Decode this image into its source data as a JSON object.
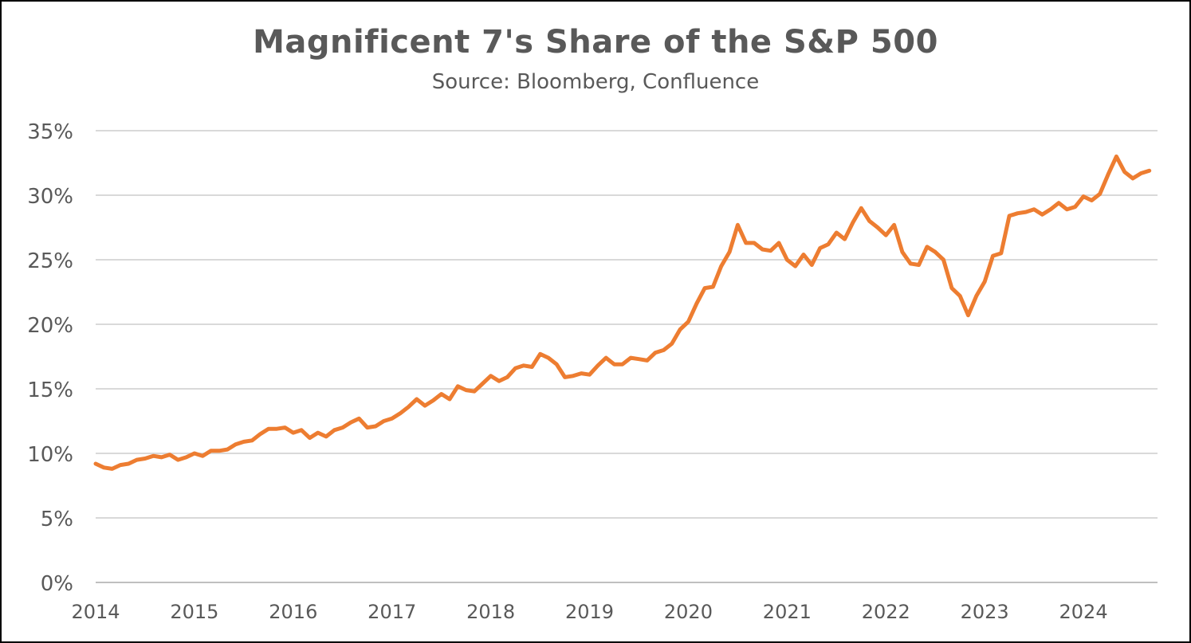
{
  "chart_data": {
    "type": "line",
    "title": "Magnificent 7's Share of the S&P 500",
    "subtitle": "Source: Bloomberg, Confluence",
    "xlabel": "",
    "ylabel": "",
    "ylim": [
      0,
      35
    ],
    "yticks": [
      "0%",
      "5%",
      "10%",
      "15%",
      "20%",
      "25%",
      "30%",
      "35%"
    ],
    "xlim": [
      2014.0,
      2024.75
    ],
    "xticks": [
      "2014",
      "2015",
      "2016",
      "2017",
      "2018",
      "2019",
      "2020",
      "2021",
      "2022",
      "2023",
      "2024"
    ],
    "grid": true,
    "legend": "none",
    "line_color": "#ED7D31",
    "series": [
      {
        "x_start": "2014-01",
        "frequency": "monthly",
        "values": [
          9.2,
          8.9,
          8.8,
          9.1,
          9.2,
          9.5,
          9.6,
          9.8,
          9.7,
          9.9,
          9.5,
          9.7,
          10.0,
          9.8,
          10.2,
          10.2,
          10.3,
          10.7,
          10.9,
          11.0,
          11.5,
          11.9,
          11.9,
          12.0,
          11.6,
          11.8,
          11.2,
          11.6,
          11.3,
          11.8,
          12.0,
          12.4,
          12.7,
          12.0,
          12.1,
          12.5,
          12.7,
          13.1,
          13.6,
          14.2,
          13.7,
          14.1,
          14.6,
          14.2,
          15.2,
          14.9,
          14.8,
          15.4,
          16.0,
          15.6,
          15.9,
          16.6,
          16.8,
          16.7,
          17.7,
          17.4,
          16.9,
          15.9,
          16.0,
          16.2,
          16.1,
          16.8,
          17.4,
          16.9,
          16.9,
          17.4,
          17.3,
          17.2,
          17.8,
          18.0,
          18.5,
          19.6,
          20.2,
          21.6,
          22.8,
          22.9,
          24.5,
          25.6,
          27.7,
          26.3,
          26.3,
          25.8,
          25.7,
          26.3,
          25.0,
          24.5,
          25.4,
          24.6,
          25.9,
          26.2,
          27.1,
          26.6,
          27.9,
          29.0,
          28.0,
          27.5,
          26.9,
          27.7,
          25.6,
          24.7,
          24.6,
          26.0,
          25.6,
          25.0,
          22.8,
          22.2,
          20.7,
          22.2,
          23.3,
          25.3,
          25.5,
          28.4,
          28.6,
          28.7,
          28.9,
          28.5,
          28.9,
          29.4,
          28.9,
          29.1,
          29.9,
          29.6,
          30.1,
          31.6,
          33.0,
          31.8,
          31.3,
          31.7,
          31.9
        ]
      }
    ]
  }
}
